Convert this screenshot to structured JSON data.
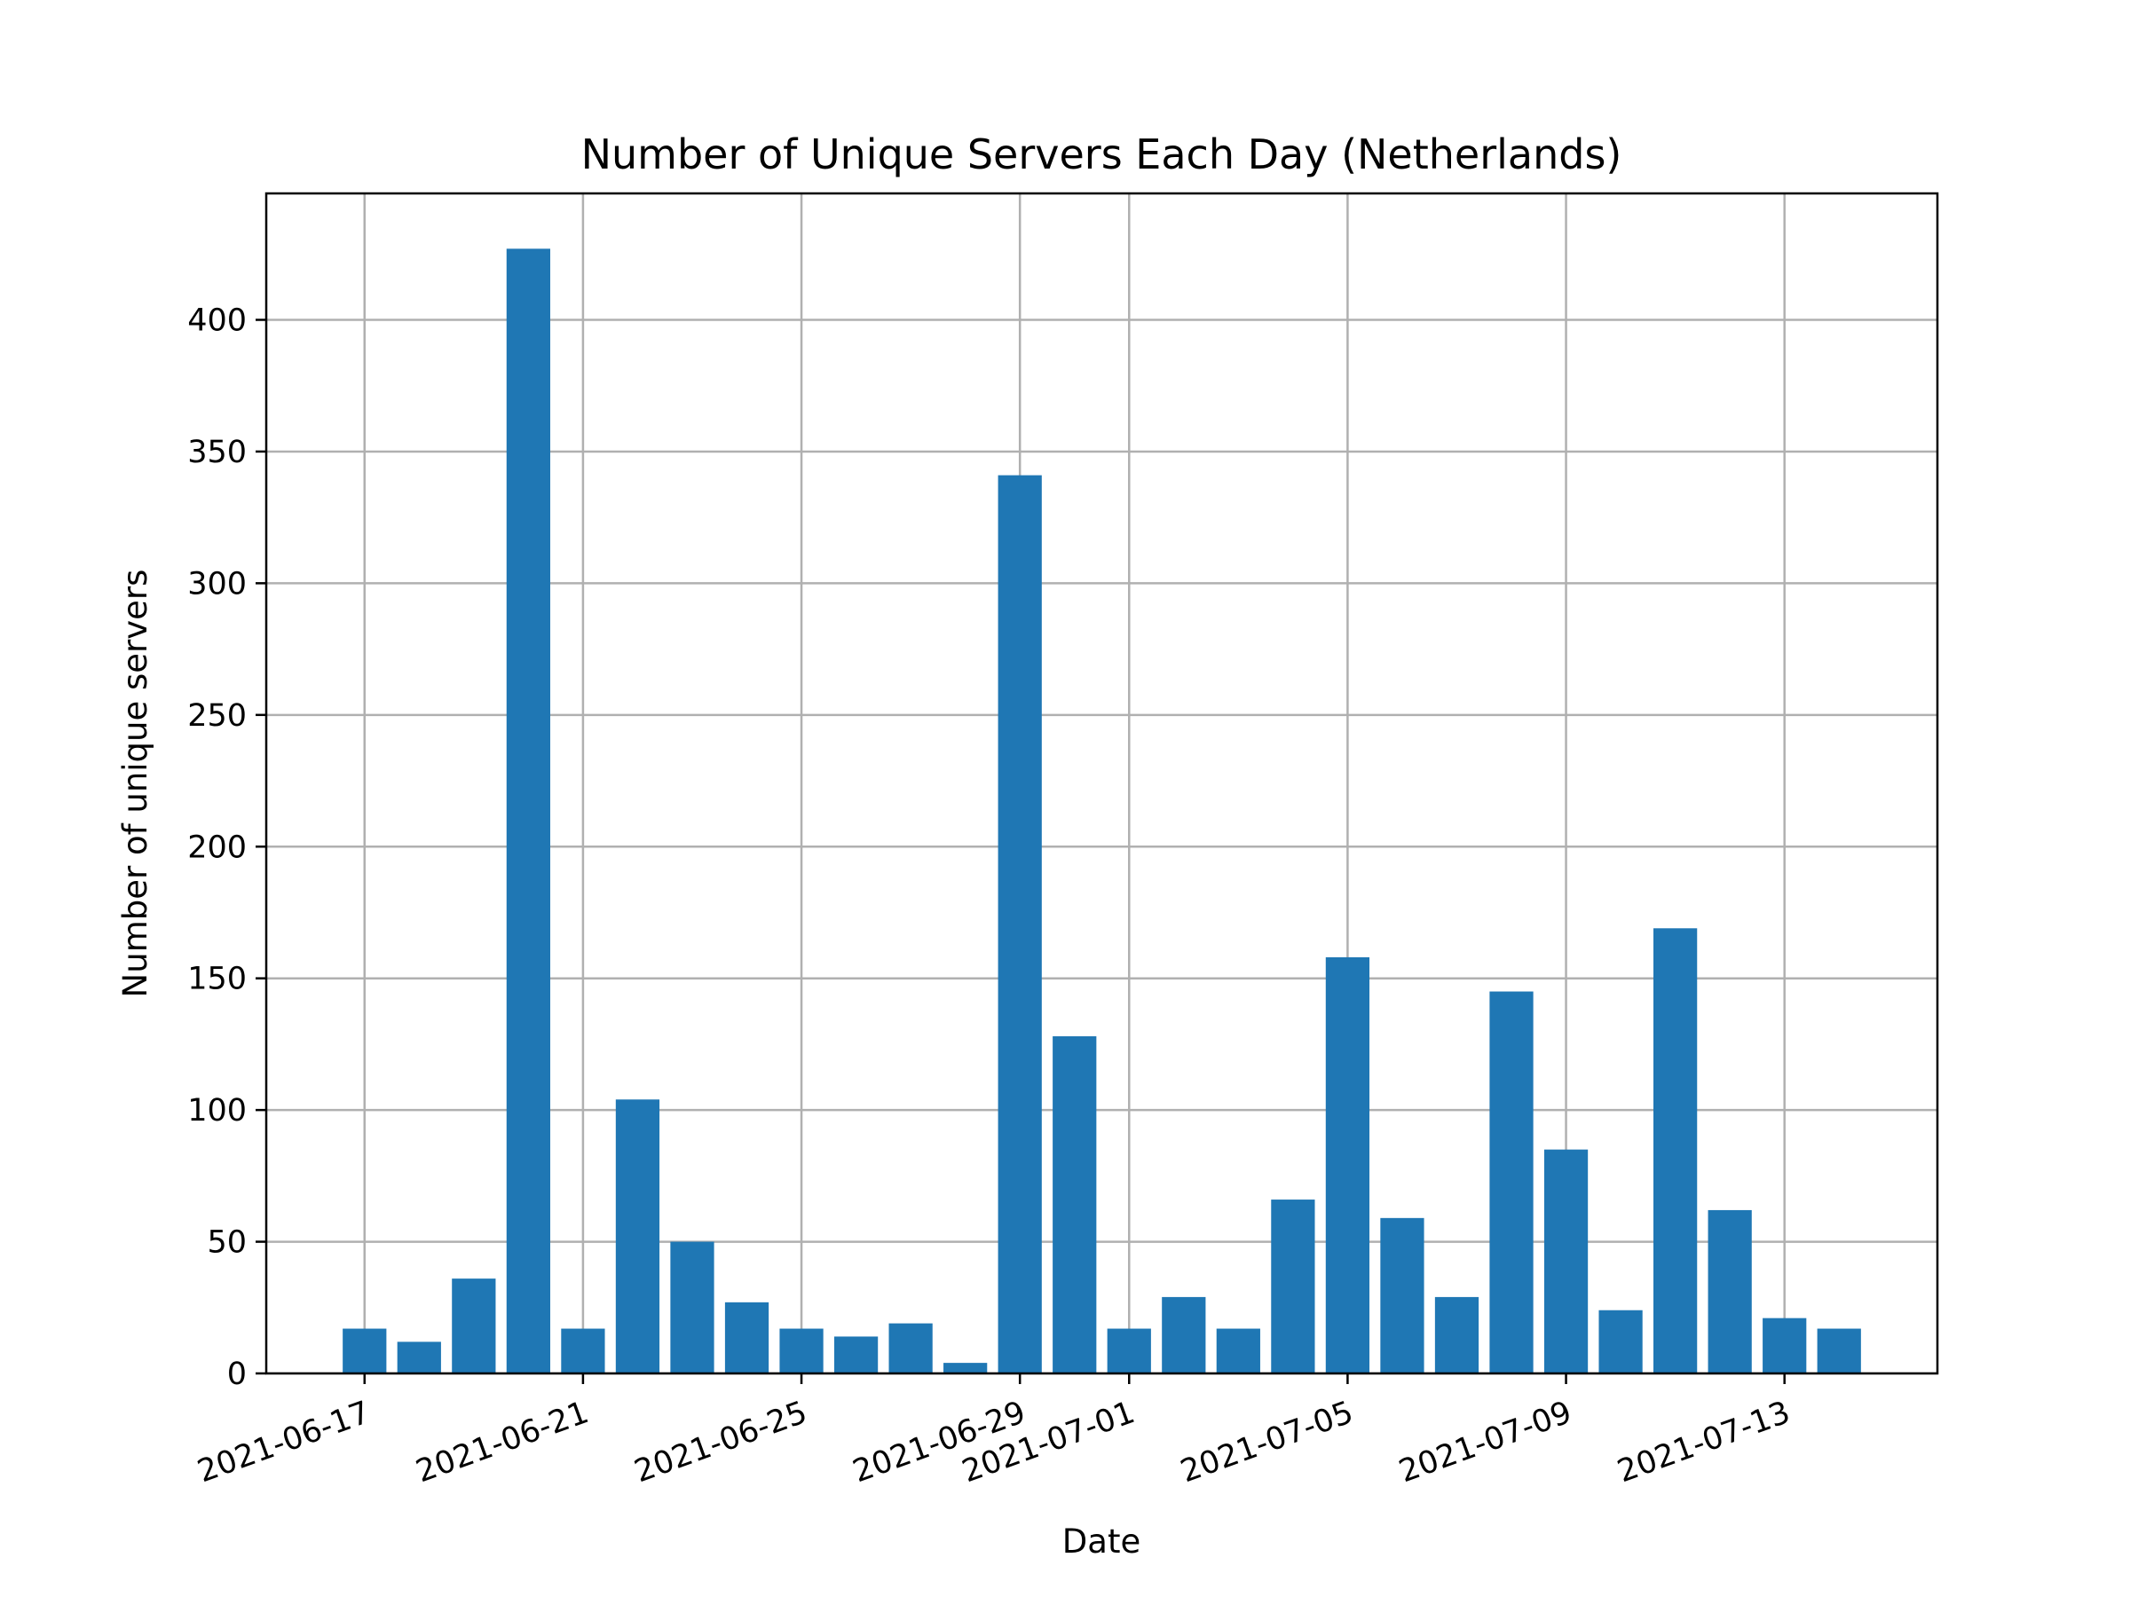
{
  "chart_data": {
    "type": "bar",
    "title": "Number of Unique Servers Each Day (Netherlands)",
    "xlabel": "Date",
    "ylabel": "Number of unique servers",
    "ylim": [
      0,
      448
    ],
    "yticks": [
      0,
      50,
      100,
      150,
      200,
      250,
      300,
      350,
      400
    ],
    "xticks": [
      "2021-06-17",
      "2021-06-21",
      "2021-06-25",
      "2021-06-29",
      "2021-07-01",
      "2021-07-05",
      "2021-07-09",
      "2021-07-13"
    ],
    "grid": true,
    "bar_color": "#1f77b4",
    "categories": [
      "2021-06-17",
      "2021-06-18",
      "2021-06-19",
      "2021-06-20",
      "2021-06-21",
      "2021-06-22",
      "2021-06-23",
      "2021-06-24",
      "2021-06-25",
      "2021-06-26",
      "2021-06-27",
      "2021-06-28",
      "2021-06-29",
      "2021-06-30",
      "2021-07-01",
      "2021-07-02",
      "2021-07-03",
      "2021-07-04",
      "2021-07-05",
      "2021-07-06",
      "2021-07-07",
      "2021-07-08",
      "2021-07-09",
      "2021-07-10",
      "2021-07-11",
      "2021-07-12",
      "2021-07-13",
      "2021-07-14"
    ],
    "values": [
      17,
      12,
      36,
      427,
      17,
      104,
      50,
      27,
      17,
      14,
      19,
      4,
      341,
      128,
      17,
      29,
      17,
      66,
      158,
      59,
      29,
      145,
      85,
      24,
      169,
      62,
      21,
      17
    ]
  }
}
